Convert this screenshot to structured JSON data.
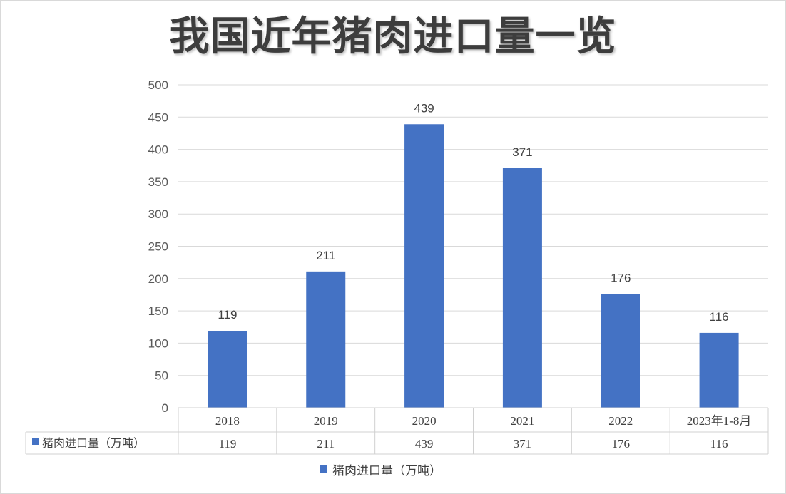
{
  "chart_data": {
    "type": "bar",
    "title": "我国近年猪肉进口量一览",
    "categories": [
      "2018",
      "2019",
      "2020",
      "2021",
      "2022",
      "2023年1-8月"
    ],
    "series": [
      {
        "name": "猪肉进口量（万吨）",
        "values": [
          119,
          211,
          439,
          371,
          176,
          116
        ],
        "color": "#4472c4"
      }
    ],
    "ylim": [
      0,
      500
    ],
    "yticks": [
      0,
      50,
      100,
      150,
      200,
      250,
      300,
      350,
      400,
      450,
      500
    ],
    "grid": true,
    "legend": "bottom",
    "data_table": true
  }
}
